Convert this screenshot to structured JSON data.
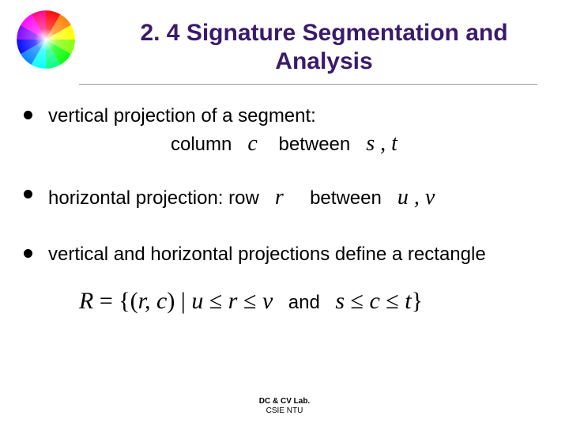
{
  "title": "2. 4 Signature Segmentation and Analysis",
  "bullets": {
    "b1_line1": "vertical projection of a segment:",
    "b1_col": "column",
    "b1_c": "c",
    "b1_between": "between",
    "b1_st": "s , t",
    "b2_text": "horizontal projection: row",
    "b2_r": "r",
    "b2_between": "between",
    "b2_uv": "u , v",
    "b3_text": "vertical and horizontal projections define a rectangle"
  },
  "formula": {
    "lhs": "R",
    "eq": " = ",
    "open": "{(",
    "rc": "r, c",
    "mid": ") | ",
    "cond1_u": "u",
    "le1": " ≤ ",
    "cond1_r": "r",
    "le2": " ≤ ",
    "cond1_v": "v",
    "and": "and",
    "cond2_s": "s",
    "le3": " ≤ ",
    "cond2_c": "c",
    "le4": " ≤ ",
    "cond2_t": "t",
    "close": "}"
  },
  "footer": {
    "lab": "DC & CV Lab.",
    "dept": "CSIE NTU"
  },
  "colorwheel_stops": [
    "#ff0000",
    "#ff8000",
    "#ffff00",
    "#80ff00",
    "#00ff00",
    "#00ff80",
    "#00ffff",
    "#0080ff",
    "#0000ff",
    "#8000ff",
    "#ff00ff",
    "#ff0080",
    "#ff0000"
  ]
}
